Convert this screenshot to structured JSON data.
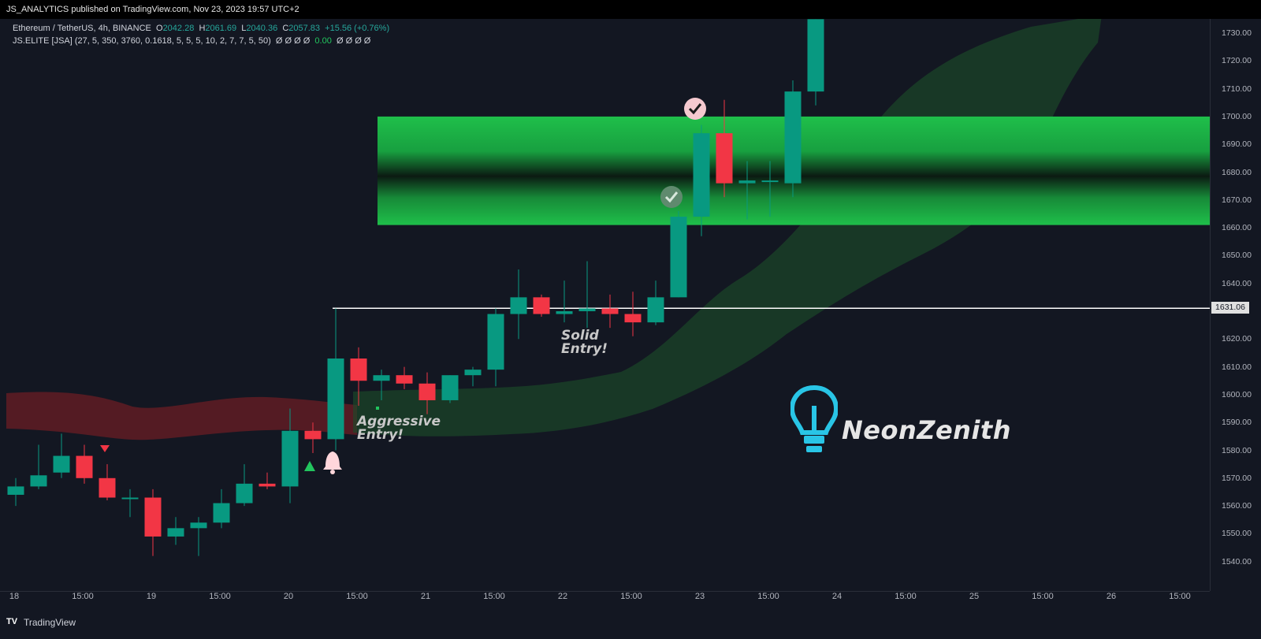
{
  "header": {
    "publisher_line": "JS_ANALYTICS published on TradingView.com, Nov 23, 2023 19:57 UTC+2"
  },
  "legend": {
    "symbol": "Ethereum / TetherUS, 4h, BINANCE",
    "o_label": "O",
    "o_value": "2042.28",
    "h_label": "H",
    "h_value": "2061.69",
    "l_label": "L",
    "l_value": "2040.36",
    "c_label": "C",
    "c_value": "2057.83",
    "change": "+15.56 (+0.76%)",
    "indicator": "JS.ELITE [JSA] (27, 5, 350, 3760, 0.1618, 5, 5, 5, 10, 2, 7, 7, 5, 50)",
    "indicator_values_a": "Ø Ø Ø Ø",
    "indicator_value_mid": "0.00",
    "indicator_values_b": "Ø Ø Ø Ø"
  },
  "price_axis": {
    "ticks": [
      "1730.00",
      "1720.00",
      "1710.00",
      "1700.00",
      "1690.00",
      "1680.00",
      "1670.00",
      "1660.00",
      "1650.00",
      "1640.00",
      "1620.00",
      "1610.00",
      "1600.00",
      "1590.00",
      "1580.00",
      "1570.00",
      "1560.00",
      "1550.00",
      "1540.00"
    ],
    "horizontal_line_label": "1631.06"
  },
  "time_axis": {
    "ticks": [
      "18",
      "15:00",
      "19",
      "15:00",
      "20",
      "15:00",
      "21",
      "15:00",
      "22",
      "15:00",
      "23",
      "15:00",
      "24",
      "15:00",
      "25",
      "15:00",
      "26",
      "15:00"
    ]
  },
  "annotations": {
    "aggressive_line1": "Aggressive",
    "aggressive_line2": "Entry!",
    "solid_line1": "Solid",
    "solid_line2": "Entry!"
  },
  "brand": {
    "name": "NeonZenith"
  },
  "footer": {
    "logo": "TV",
    "name": "TradingView"
  },
  "colors": {
    "background": "#131722",
    "bull": "#089981",
    "bear": "#f23645",
    "zone_green": "#1fbf4a",
    "bearish_cloud": "#6b1e24",
    "bullish_cloud": "#1b4a2a",
    "brand_cyan": "#29c5e6"
  },
  "chart_data": {
    "type": "candlestick",
    "timeframe": "4h",
    "price_range": [
      1535,
      1735
    ],
    "horizontal_line": 1631.06,
    "supply_zone": {
      "from": 1661,
      "to": 1700
    },
    "candles": [
      {
        "o": 1564,
        "h": 1570,
        "l": 1560,
        "c": 1567
      },
      {
        "o": 1567,
        "h": 1582,
        "l": 1566,
        "c": 1571
      },
      {
        "o": 1572,
        "h": 1586,
        "l": 1570,
        "c": 1578
      },
      {
        "o": 1578,
        "h": 1582,
        "l": 1568,
        "c": 1570
      },
      {
        "o": 1570,
        "h": 1575,
        "l": 1562,
        "c": 1563
      },
      {
        "o": 1563,
        "h": 1566,
        "l": 1556,
        "c": 1563
      },
      {
        "o": 1563,
        "h": 1566,
        "l": 1542,
        "c": 1549
      },
      {
        "o": 1549,
        "h": 1556,
        "l": 1546,
        "c": 1552
      },
      {
        "o": 1552,
        "h": 1556,
        "l": 1542,
        "c": 1554
      },
      {
        "o": 1554,
        "h": 1566,
        "l": 1552,
        "c": 1561
      },
      {
        "o": 1561,
        "h": 1575,
        "l": 1560,
        "c": 1568
      },
      {
        "o": 1568,
        "h": 1572,
        "l": 1566,
        "c": 1567
      },
      {
        "o": 1567,
        "h": 1595,
        "l": 1561,
        "c": 1587
      },
      {
        "o": 1587,
        "h": 1590,
        "l": 1579,
        "c": 1584
      },
      {
        "o": 1584,
        "h": 1631,
        "l": 1580,
        "c": 1613
      },
      {
        "o": 1613,
        "h": 1617,
        "l": 1596,
        "c": 1605
      },
      {
        "o": 1605,
        "h": 1609,
        "l": 1598,
        "c": 1607
      },
      {
        "o": 1607,
        "h": 1610,
        "l": 1602,
        "c": 1604
      },
      {
        "o": 1604,
        "h": 1608,
        "l": 1593,
        "c": 1598
      },
      {
        "o": 1598,
        "h": 1607,
        "l": 1597,
        "c": 1607
      },
      {
        "o": 1607,
        "h": 1610,
        "l": 1603,
        "c": 1609
      },
      {
        "o": 1609,
        "h": 1631,
        "l": 1603,
        "c": 1629
      },
      {
        "o": 1629,
        "h": 1645,
        "l": 1620,
        "c": 1635
      },
      {
        "o": 1635,
        "h": 1636,
        "l": 1628,
        "c": 1629
      },
      {
        "o": 1629,
        "h": 1641,
        "l": 1626,
        "c": 1630
      },
      {
        "o": 1630,
        "h": 1648,
        "l": 1624,
        "c": 1631
      },
      {
        "o": 1631,
        "h": 1636,
        "l": 1624,
        "c": 1629
      },
      {
        "o": 1629,
        "h": 1637,
        "l": 1621,
        "c": 1626
      },
      {
        "o": 1626,
        "h": 1641,
        "l": 1625,
        "c": 1635
      },
      {
        "o": 1635,
        "h": 1666,
        "l": 1635,
        "c": 1664
      },
      {
        "o": 1664,
        "h": 1697,
        "l": 1657,
        "c": 1694
      },
      {
        "o": 1694,
        "h": 1706,
        "l": 1671,
        "c": 1676
      },
      {
        "o": 1676,
        "h": 1684,
        "l": 1663,
        "c": 1677
      },
      {
        "o": 1677,
        "h": 1684,
        "l": 1664,
        "c": 1677
      },
      {
        "o": 1676,
        "h": 1713,
        "l": 1671,
        "c": 1709
      },
      {
        "o": 1709,
        "h": 1735,
        "l": 1704,
        "c": 1735
      }
    ]
  }
}
